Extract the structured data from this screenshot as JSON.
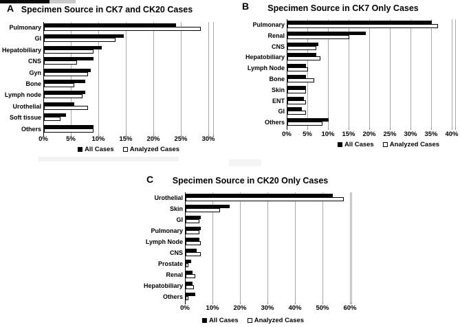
{
  "figure": {
    "background": "#ffffff",
    "bar_color_all": "#050505",
    "bar_color_analyzed": "#ffffff",
    "gridline_color": "#a8a8a8"
  },
  "chart_data": [
    {
      "type": "bar",
      "orientation": "horizontal",
      "panel": "A",
      "title": "Specimen Source in CK7 and CK20 Cases",
      "categories": [
        "Pulmonary",
        "GI",
        "Hepatobiliary",
        "CNS",
        "Gyn",
        "Bone",
        "Lymph node",
        "Urothelial",
        "Soft tissue",
        "Others"
      ],
      "series": [
        {
          "name": "All Cases",
          "values": [
            24,
            14.5,
            10.5,
            9,
            8.5,
            7.5,
            7.5,
            5.5,
            4,
            9
          ]
        },
        {
          "name": "Analyzed Cases",
          "values": [
            28.5,
            13,
            9,
            6,
            8,
            5.5,
            7,
            8,
            3,
            9
          ]
        }
      ],
      "xlim": [
        0,
        30
      ],
      "tick_step": 5,
      "tick_labels": [
        "0%",
        "5%",
        "10%",
        "15%",
        "20%",
        "25%",
        "30%"
      ],
      "grid": true,
      "legend_position": "bottom"
    },
    {
      "type": "bar",
      "orientation": "horizontal",
      "panel": "B",
      "title": "Specimen Source in CK7 Only Cases",
      "categories": [
        "Pulmonary",
        "Renal",
        "CNS",
        "Hepatobiliary",
        "Lymph Node",
        "Bone",
        "Skin",
        "ENT",
        "GI",
        "Others"
      ],
      "series": [
        {
          "name": "All Cases",
          "values": [
            35,
            19,
            7.5,
            7,
            4.5,
            4.5,
            4.5,
            4,
            3.5,
            10
          ]
        },
        {
          "name": "Analyzed Cases",
          "values": [
            36.5,
            15,
            7,
            8,
            5,
            6.5,
            4.5,
            4.5,
            4.5,
            8.5
          ]
        }
      ],
      "xlim": [
        0,
        40
      ],
      "tick_step": 5,
      "tick_labels": [
        "0%",
        "5%",
        "10%",
        "15%",
        "20%",
        "25%",
        "30%",
        "35%",
        "40%"
      ],
      "grid": true,
      "legend_position": "bottom"
    },
    {
      "type": "bar",
      "orientation": "horizontal",
      "panel": "C",
      "title": "Specimen Source in CK20 Only Cases",
      "categories": [
        "Urothelial",
        "Skin",
        "GI",
        "Pulmonary",
        "Lymph Node",
        "CNS",
        "Prostate",
        "Renal",
        "Hepatobiliary",
        "Others"
      ],
      "series": [
        {
          "name": "All Cases",
          "values": [
            53.5,
            16,
            5.5,
            5.5,
            5,
            4,
            2,
            2.5,
            2.5,
            3.5
          ]
        },
        {
          "name": "Analyzed Cases",
          "values": [
            57.5,
            12.5,
            5,
            5,
            5.5,
            5.5,
            1,
            3.5,
            3,
            1
          ]
        }
      ],
      "xlim": [
        0,
        60
      ],
      "tick_step": 10,
      "tick_labels": [
        "0%",
        "10%",
        "20%",
        "30%",
        "40%",
        "50%",
        "60%"
      ],
      "grid": true,
      "legend_position": "bottom"
    }
  ]
}
